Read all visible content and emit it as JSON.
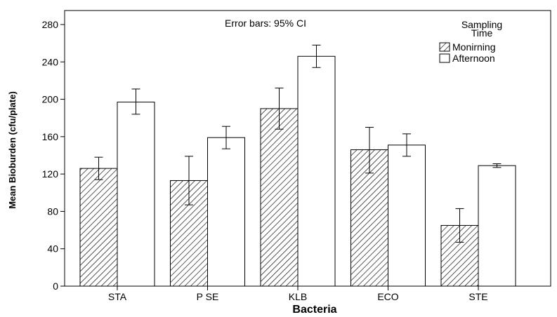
{
  "chart_data": {
    "type": "bar",
    "xlabel": "Bacteria",
    "ylabel": "Mean Bioburden (cfu/plate)",
    "annotation": "Error bars: 95% CI",
    "categories": [
      "STA",
      "P SE",
      "KLB",
      "ECO",
      "STE"
    ],
    "ylim": [
      0,
      295
    ],
    "yticks": [
      "0",
      "40",
      "80",
      "120",
      "160",
      "200",
      "240",
      "280"
    ],
    "legend": {
      "title_line1": "Sampling",
      "title_line2": "Time",
      "placement": "top-right"
    },
    "series": [
      {
        "name": "Monirning",
        "fill": "hatched",
        "values": [
          126,
          113,
          190,
          146,
          65
        ],
        "ci_low": [
          114,
          87,
          168,
          121,
          47
        ],
        "ci_high": [
          138,
          139,
          212,
          170,
          83
        ]
      },
      {
        "name": "Afternoon",
        "fill": "white",
        "values": [
          197,
          159,
          246,
          151,
          129
        ],
        "ci_low": [
          184,
          147,
          234,
          139,
          127
        ],
        "ci_high": [
          211,
          171,
          258,
          163,
          131
        ]
      }
    ],
    "colors": {
      "stroke": "#000000",
      "hatch": "#000000",
      "open_fill": "#ffffff"
    }
  }
}
